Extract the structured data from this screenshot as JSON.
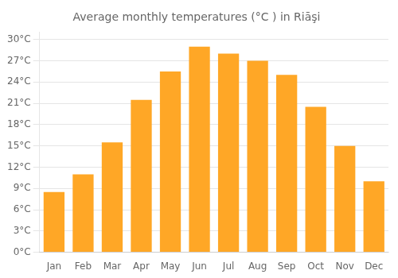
{
  "chart_data": {
    "type": "bar",
    "title": "Average monthly temperatures (°C ) in Riāşi",
    "categories": [
      "Jan",
      "Feb",
      "Mar",
      "Apr",
      "May",
      "Jun",
      "Jul",
      "Aug",
      "Sep",
      "Oct",
      "Nov",
      "Dec"
    ],
    "values": [
      8.5,
      11.0,
      15.5,
      21.5,
      25.5,
      29.0,
      28.0,
      27.0,
      25.0,
      20.5,
      15.0,
      10.0
    ],
    "color": "#FFA726",
    "ylim": [
      0,
      31
    ],
    "yticks": [
      {
        "value": 0,
        "label": "0°C"
      },
      {
        "value": 3,
        "label": "3°C"
      },
      {
        "value": 6,
        "label": "6°C"
      },
      {
        "value": 9,
        "label": "9°C"
      },
      {
        "value": 12,
        "label": "12°C"
      },
      {
        "value": 15,
        "label": "15°C"
      },
      {
        "value": 18,
        "label": "18°C"
      },
      {
        "value": 21,
        "label": "21°C"
      },
      {
        "value": 24,
        "label": "24°C"
      },
      {
        "value": 27,
        "label": "27°C"
      },
      {
        "value": 30,
        "label": "30°C"
      }
    ],
    "grid": true
  }
}
